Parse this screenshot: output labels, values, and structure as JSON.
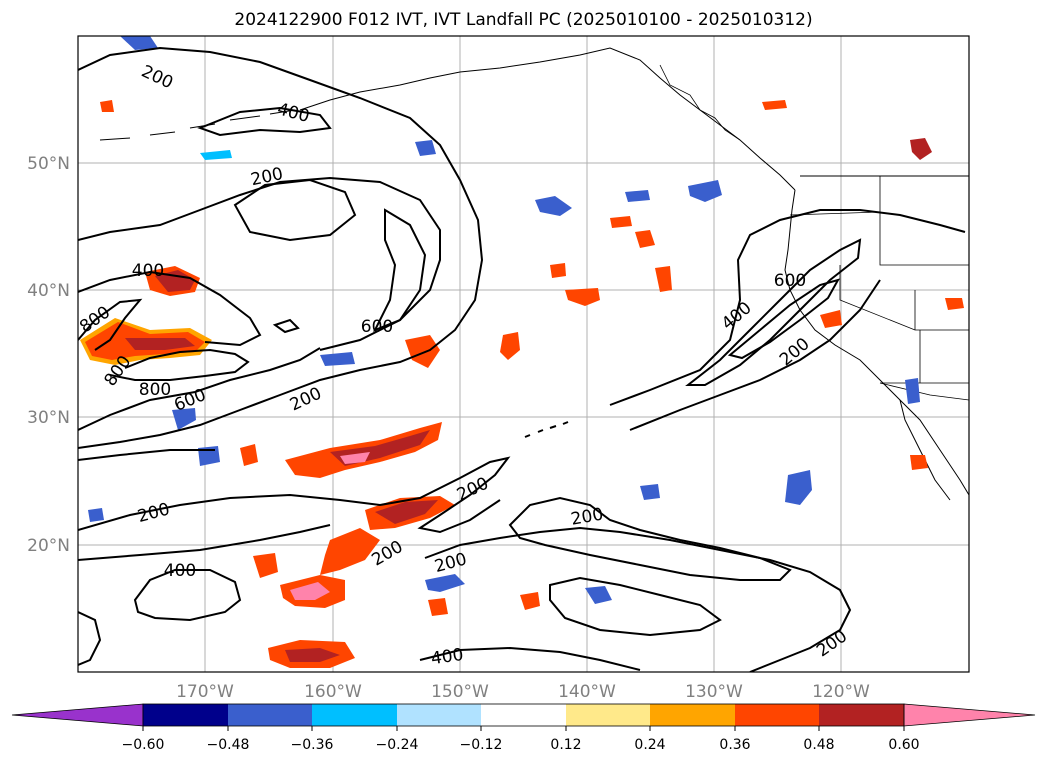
{
  "title": "2024122900 F012 IVT, IVT Landfall PC (2025010100 - 2025010312)",
  "lat_labels": [
    "50°N",
    "40°N",
    "30°N",
    "20°N"
  ],
  "lon_labels": [
    "170°W",
    "160°W",
    "150°W",
    "140°W",
    "130°W",
    "120°W"
  ],
  "contour_labels": [
    "200",
    "400",
    "200",
    "400",
    "800",
    "800",
    "800",
    "600",
    "600",
    "200",
    "200",
    "200",
    "400",
    "200",
    "200",
    "200",
    "200",
    "200",
    "400",
    "200",
    "600",
    "400",
    "200",
    "200",
    "400"
  ],
  "colorbar": {
    "ticks": [
      "−0.60",
      "−0.48",
      "−0.36",
      "−0.24",
      "−0.12",
      "0.12",
      "0.24",
      "0.36",
      "0.48",
      "0.60"
    ],
    "colors": [
      "#9932cc",
      "#00008b",
      "#3a5fcd",
      "#00bfff",
      "#b0e2ff",
      "#ffffff",
      "#ffe98a",
      "#ffa500",
      "#ff4500",
      "#b22222",
      "#ff83ab"
    ]
  },
  "colors": {
    "contour": "#000000",
    "grid": "#b0b0b0",
    "coast": "#000000",
    "tick_label": "#808080"
  }
}
